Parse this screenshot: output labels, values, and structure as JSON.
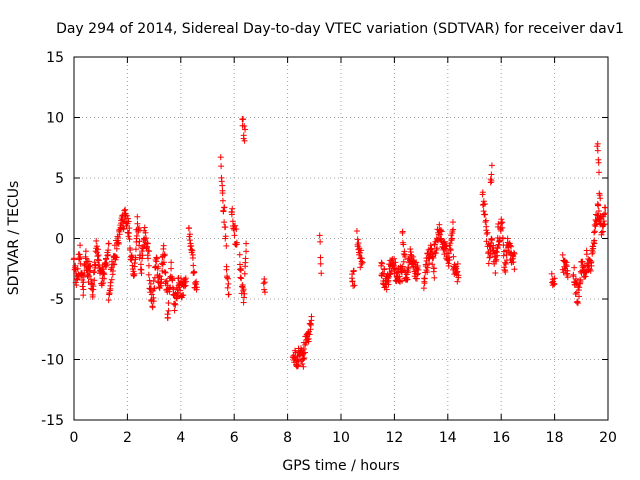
{
  "chart_data": {
    "type": "scatter",
    "title": "Day 294 of 2014, Sidereal Day-to-day VTEC variation (SDTVAR) for receiver dav1",
    "xlabel": "GPS time / hours",
    "ylabel": "SDTVAR / TECUs",
    "xlim": [
      0,
      20
    ],
    "ylim": [
      -15,
      15
    ],
    "xticks": [
      "0",
      "2",
      "4",
      "6",
      "8",
      "10",
      "12",
      "14",
      "16",
      "18",
      "20"
    ],
    "yticks": [
      "15",
      "10",
      "5",
      "0",
      "-5",
      "-10",
      "-15"
    ],
    "marker": "+",
    "color": "#ff0000",
    "grid": true,
    "segments": [
      [
        0.0,
        0.55,
        [
          -2.0,
          -3.8,
          -1.0,
          -4.6,
          -1.5,
          -3.0
        ]
      ],
      [
        0.55,
        1.3,
        [
          -2.0,
          -4.8,
          -0.3,
          -3.5,
          -2.5,
          -1.0
        ]
      ],
      [
        1.3,
        2.1,
        [
          -4.5,
          -2.0,
          -0.5,
          1.0,
          2.2,
          0.0
        ]
      ],
      [
        2.1,
        2.8,
        [
          -1.0,
          -3.0,
          1.5,
          -2.5,
          0.5,
          -1.5
        ]
      ],
      [
        2.8,
        3.5,
        [
          -3.0,
          -5.5,
          -2.0,
          -4.0,
          -1.0,
          -4.8
        ]
      ],
      [
        3.5,
        4.2,
        [
          -6.5,
          -2.5,
          -5.5,
          -3.5,
          -4.5,
          -3.0
        ]
      ],
      [
        4.3,
        4.6,
        [
          0.8,
          -1.0,
          -3.5,
          -4.0
        ]
      ],
      [
        5.5,
        5.8,
        [
          6.0,
          3.5,
          1.5,
          -3.0,
          -4.8
        ]
      ],
      [
        5.9,
        6.1,
        [
          3.0,
          0.5,
          0.0
        ]
      ],
      [
        6.2,
        6.45,
        [
          -1.5,
          -4.0,
          -5.0,
          0.2
        ]
      ],
      [
        6.3,
        6.4,
        [
          10.2,
          9.0,
          8.8
        ]
      ],
      [
        7.1,
        7.15,
        [
          -3.8
        ]
      ],
      [
        8.2,
        8.6,
        [
          -9.0,
          -10.5,
          -9.5,
          -10.0
        ]
      ],
      [
        8.6,
        8.9,
        [
          -9.5,
          -8.0,
          -7.0
        ]
      ],
      [
        9.2,
        9.25,
        [
          -0.5,
          -1.2,
          -2.0,
          -2.7
        ]
      ],
      [
        10.4,
        10.5,
        [
          -3.0,
          -3.5
        ]
      ],
      [
        10.6,
        10.8,
        [
          0.2,
          -1.0,
          -1.8,
          -1.2
        ]
      ],
      [
        11.5,
        12.3,
        [
          -2.5,
          -3.8,
          -2.0,
          -3.0,
          -2.8
        ]
      ],
      [
        12.3,
        12.9,
        [
          0.2,
          -3.5,
          -1.5,
          -2.5,
          -3.0
        ]
      ],
      [
        13.1,
        13.5,
        [
          -3.5,
          -2.0,
          -1.0,
          -3.0
        ]
      ],
      [
        13.5,
        14.2,
        [
          -1.0,
          0.5,
          -0.5,
          -2.0,
          1.3
        ]
      ],
      [
        14.2,
        14.4,
        [
          -2.0,
          -3.0
        ]
      ],
      [
        15.3,
        15.9,
        [
          3.3,
          1.5,
          -1.5,
          0.0,
          -2.5,
          1.0
        ]
      ],
      [
        15.6,
        15.65,
        [
          5.4
        ]
      ],
      [
        15.9,
        16.5,
        [
          -1.0,
          1.8,
          -2.5,
          0.0,
          -1.5,
          -2.0
        ]
      ],
      [
        17.9,
        18.0,
        [
          -3.0,
          -3.5
        ]
      ],
      [
        18.3,
        18.5,
        [
          -2.0,
          -2.5
        ]
      ],
      [
        18.7,
        19.2,
        [
          -2.5,
          -4.9,
          -2.0,
          -3.0
        ]
      ],
      [
        19.2,
        19.9,
        [
          -1.5,
          -2.3,
          0.0,
          2.5,
          1.0,
          2.0
        ]
      ],
      [
        19.6,
        19.7,
        [
          8.2,
          7.3,
          6.3,
          4.5,
          3.0
        ]
      ]
    ]
  }
}
